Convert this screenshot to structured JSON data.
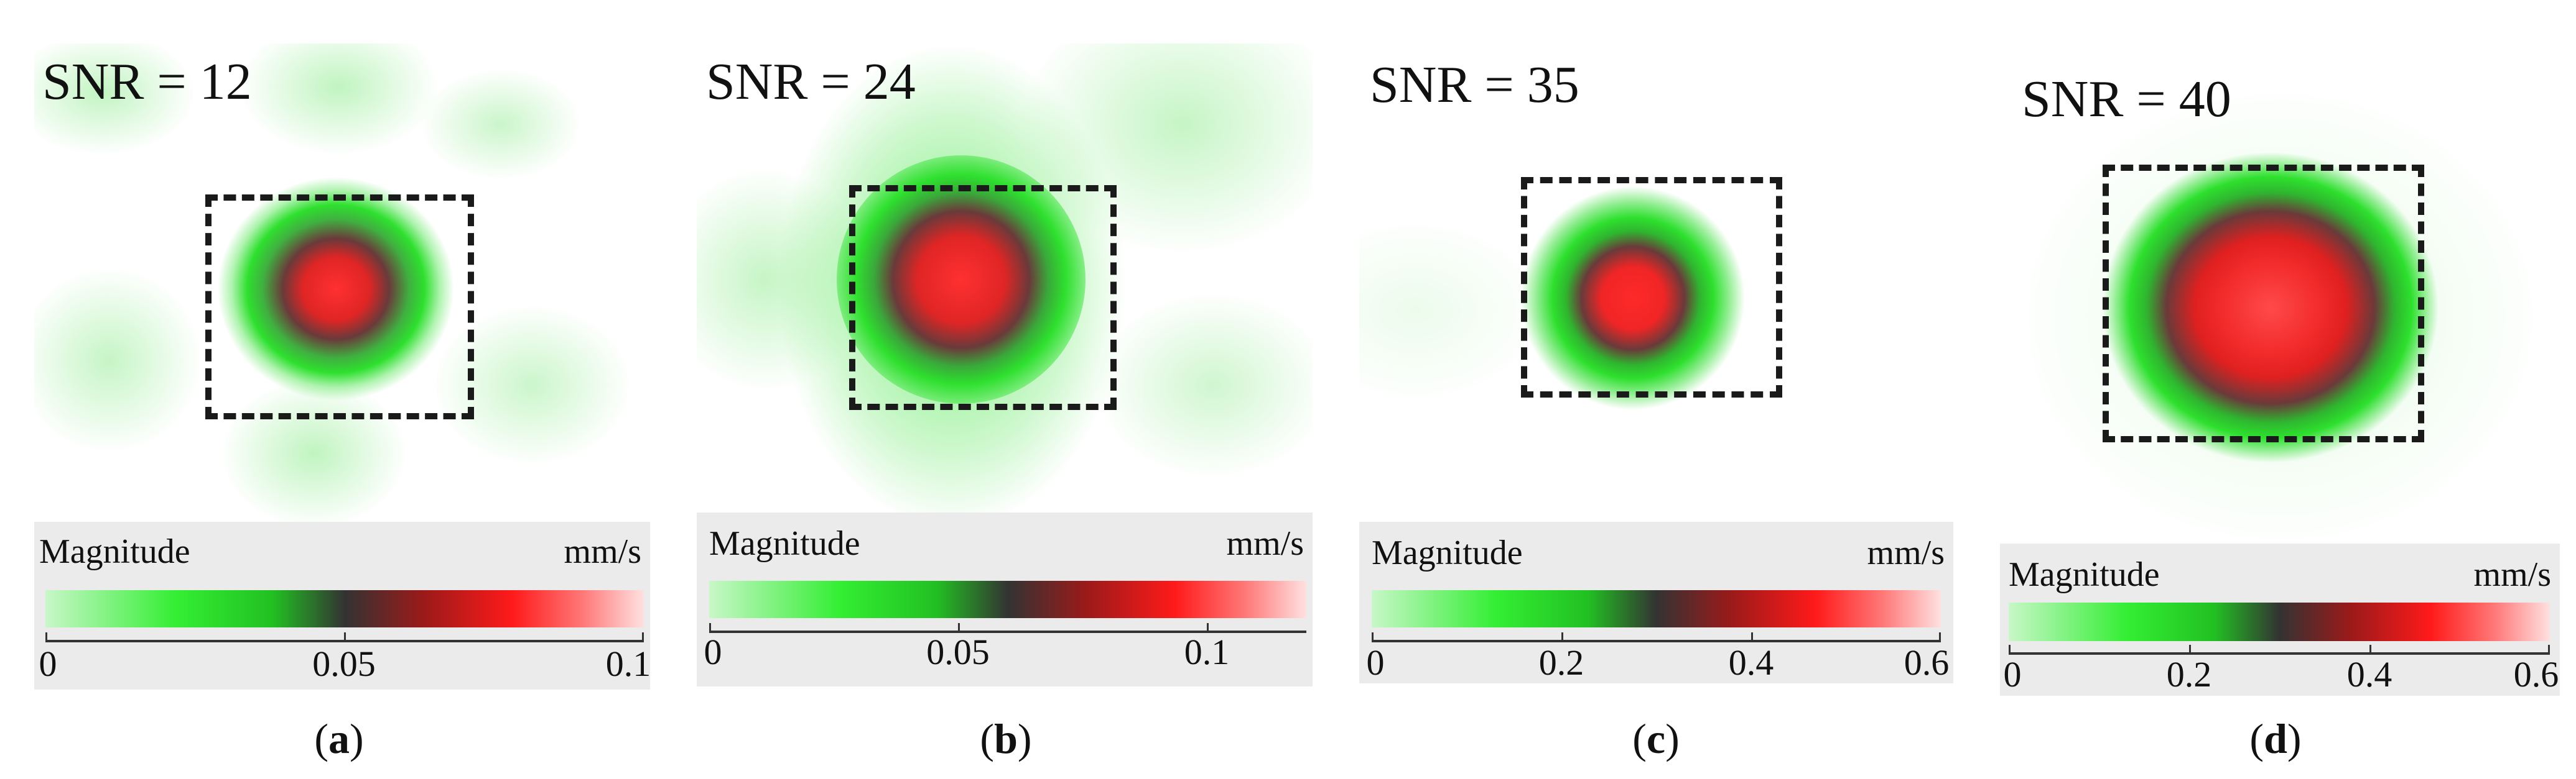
{
  "colors": {
    "low": "#33ee33",
    "mid": "#333333",
    "high": "#ff1a1a",
    "top": "#ffe0e0",
    "roi_border": "#1a1a1a",
    "legend_bg": "#ebebeb"
  },
  "panels": [
    {
      "snr": "SNR = 12",
      "legend_title": "Magnitude",
      "legend_unit": "mm/s",
      "ticks": [
        "0",
        "0.05",
        "0.1"
      ],
      "caption_letter": "a",
      "colorbar_range": [
        0,
        0.1
      ]
    },
    {
      "snr": "SNR = 24",
      "legend_title": "Magnitude",
      "legend_unit": "mm/s",
      "ticks": [
        "0",
        "0.05",
        "0.1"
      ],
      "caption_letter": "b",
      "colorbar_range": [
        0,
        0.12
      ]
    },
    {
      "snr": "SNR = 35",
      "legend_title": "Magnitude",
      "legend_unit": "mm/s",
      "ticks": [
        "0",
        "0.2",
        "0.4",
        "0.6"
      ],
      "caption_letter": "c",
      "colorbar_range": [
        0,
        0.6
      ]
    },
    {
      "snr": "SNR = 40",
      "legend_title": "Magnitude",
      "legend_unit": "mm/s",
      "ticks": [
        "0",
        "0.2",
        "0.4",
        "0.6"
      ],
      "caption_letter": "d",
      "colorbar_range": [
        0,
        0.6
      ]
    }
  ]
}
